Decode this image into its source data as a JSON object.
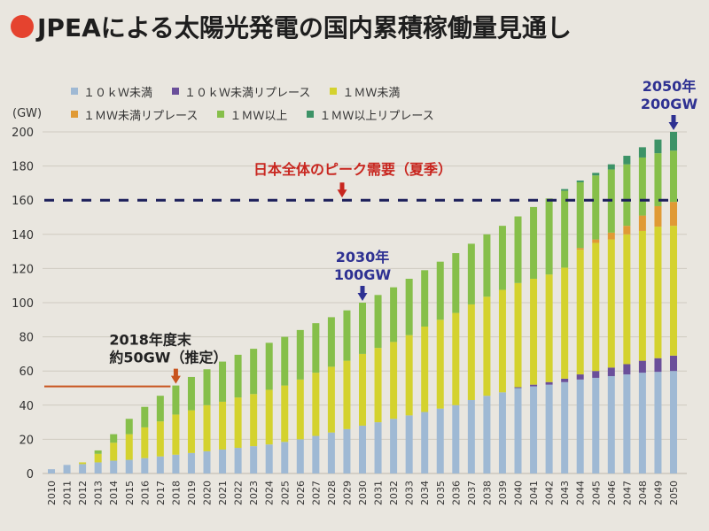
{
  "title": "JPEAによる太陽光発電の国内累積稼働量見通し",
  "colors": {
    "title_dot": "#e5432f",
    "peak_line": "#1c1f5a",
    "peak_text": "#c8261f",
    "highlight_blue": "#2e3192",
    "highlight_orange": "#c8541e",
    "grid": "#cfcac0"
  },
  "chart_data": {
    "type": "bar",
    "stacked": true,
    "title": "JPEAによる太陽光発電の国内累積稼働量見通し",
    "xlabel": "",
    "ylabel": "(GW)",
    "ylim": [
      0,
      200
    ],
    "yticks": [
      0,
      20,
      40,
      60,
      80,
      100,
      120,
      140,
      160,
      180,
      200
    ],
    "grid": true,
    "legend_position": "top",
    "categories": [
      "2010",
      "2011",
      "2012",
      "2013",
      "2014",
      "2015",
      "2016",
      "2017",
      "2018",
      "2019",
      "2020",
      "2021",
      "2022",
      "2023",
      "2024",
      "2025",
      "2026",
      "2027",
      "2028",
      "2029",
      "2030",
      "2031",
      "2032",
      "2033",
      "2034",
      "2035",
      "2036",
      "2037",
      "2038",
      "2039",
      "2040",
      "2041",
      "2042",
      "2043",
      "2044",
      "2045",
      "2046",
      "2047",
      "2048",
      "2049",
      "2050"
    ],
    "series": [
      {
        "name": "１０ｋＷ未満",
        "color": "#9fb9d4",
        "values": [
          2.5,
          5,
          5.5,
          6.5,
          7.5,
          8,
          9,
          10,
          11,
          12,
          13,
          14,
          15,
          16,
          17,
          18.5,
          20,
          22,
          24,
          26,
          28,
          30,
          32,
          34,
          36,
          38,
          40,
          43,
          45.5,
          47.5,
          50,
          51,
          52,
          53.5,
          55,
          56,
          57,
          58,
          59,
          59.5,
          60
        ]
      },
      {
        "name": "１０ｋＷ未満リプレース",
        "color": "#6a4f9a",
        "values": [
          0,
          0,
          0,
          0,
          0,
          0,
          0,
          0,
          0,
          0,
          0,
          0,
          0,
          0,
          0,
          0,
          0,
          0,
          0,
          0,
          0,
          0,
          0,
          0,
          0,
          0,
          0,
          0,
          0,
          0,
          0.5,
          1,
          1.5,
          2,
          3,
          4,
          5,
          6,
          7,
          8,
          9
        ]
      },
      {
        "name": "１ＭＷ未満",
        "color": "#d4d22e",
        "values": [
          0,
          0,
          1,
          5,
          10.5,
          15,
          18,
          20.5,
          23.5,
          25,
          27,
          28,
          29.5,
          30.5,
          32,
          33,
          35,
          37,
          38.5,
          40,
          42,
          43.5,
          45,
          47,
          50,
          52,
          54,
          56,
          58,
          60,
          61,
          62,
          63,
          65,
          73,
          75,
          75,
          76,
          76,
          77,
          76
        ]
      },
      {
        "name": "１ＭＷ未満リプレース",
        "color": "#e09a35",
        "values": [
          0,
          0,
          0,
          0,
          0,
          0,
          0,
          0,
          0,
          0,
          0,
          0,
          0,
          0,
          0,
          0,
          0,
          0,
          0,
          0,
          0,
          0,
          0,
          0,
          0,
          0,
          0,
          0,
          0,
          0,
          0,
          0,
          0,
          0,
          1,
          2,
          4,
          5,
          9,
          12,
          14
        ]
      },
      {
        "name": "１ＭＷ以上",
        "color": "#86bf4a",
        "values": [
          0,
          0,
          0,
          2,
          5,
          9,
          12,
          15,
          17,
          19.5,
          21,
          23.5,
          25,
          26.5,
          27.5,
          28.5,
          29,
          29,
          29,
          29.5,
          30,
          31,
          32,
          33,
          33,
          34,
          35,
          35.5,
          36.5,
          37.5,
          39,
          42,
          44.5,
          45,
          38.5,
          37.5,
          37,
          36,
          34,
          31,
          30
        ]
      },
      {
        "name": "１ＭＷ以上リプレース",
        "color": "#3d9367",
        "values": [
          0,
          0,
          0,
          0,
          0,
          0,
          0,
          0,
          0,
          0,
          0,
          0,
          0,
          0,
          0,
          0,
          0,
          0,
          0,
          0,
          0,
          0,
          0,
          0,
          0,
          0,
          0,
          0,
          0,
          0,
          0,
          0,
          0,
          1,
          1,
          1.5,
          3,
          5,
          6,
          8,
          11
        ]
      }
    ],
    "reference_lines": [
      {
        "value": 160,
        "label": "日本全体のピーク需要（夏季）",
        "style": "dashed"
      },
      {
        "value": 51,
        "label": "",
        "style": "solid",
        "until_category": "2018"
      }
    ],
    "annotations": [
      {
        "category": "2018",
        "lines": [
          "2018年度末",
          "約50GW（推定）"
        ],
        "color": "orange"
      },
      {
        "category": "2030",
        "lines": [
          "2030年",
          "100GW"
        ],
        "color": "blue"
      },
      {
        "category": "2050",
        "lines": [
          "2050年",
          "200GW"
        ],
        "color": "blue"
      }
    ]
  },
  "legend": {
    "row1": [
      {
        "label": "１０ｋＷ未満",
        "color": "#9fb9d4"
      },
      {
        "label": "１０ｋＷ未満リプレース",
        "color": "#6a4f9a"
      },
      {
        "label": "１ＭＷ未満",
        "color": "#d4d22e"
      }
    ],
    "row2": [
      {
        "label": "１ＭＷ未満リプレース",
        "color": "#e09a35"
      },
      {
        "label": "１ＭＷ以上",
        "color": "#86bf4a"
      },
      {
        "label": "１ＭＷ以上リプレース",
        "color": "#3d9367"
      }
    ]
  },
  "unit_label": "(GW)",
  "peak_label": "日本全体のピーク需要（夏季）"
}
